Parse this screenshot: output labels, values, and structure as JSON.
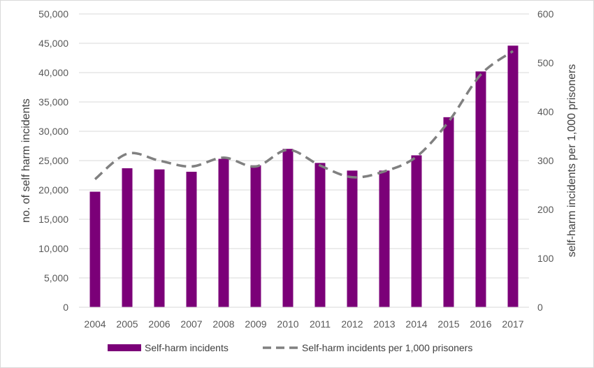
{
  "chart_data": {
    "type": "bar",
    "categories": [
      "2004",
      "2005",
      "2006",
      "2007",
      "2008",
      "2009",
      "2010",
      "2011",
      "2012",
      "2013",
      "2014",
      "2015",
      "2016",
      "2017"
    ],
    "series": [
      {
        "name": "Self-harm incidents",
        "type": "bar",
        "axis": "left",
        "color": "#7b0078",
        "values": [
          19700,
          23700,
          23500,
          23100,
          25300,
          24200,
          27000,
          24600,
          23300,
          23300,
          25900,
          32400,
          40200,
          44600
        ]
      },
      {
        "name": "Self-harm incidents per 1,000 prisoners",
        "type": "line",
        "style": "dashed",
        "axis": "right",
        "color": "#808080",
        "values": [
          262,
          314,
          300,
          288,
          306,
          288,
          322,
          290,
          266,
          278,
          308,
          380,
          476,
          524
        ]
      }
    ],
    "xlabel": "",
    "ylabel": "no. of self harm incidents",
    "y2label": "self-harm incidents per 1,000 prisoners",
    "ylim": [
      0,
      50000
    ],
    "y2lim": [
      0,
      600
    ],
    "yticks": [
      "0",
      "5,000",
      "10,000",
      "15,000",
      "20,000",
      "25,000",
      "30,000",
      "35,000",
      "40,000",
      "45,000",
      "50,000"
    ],
    "y2ticks": [
      "0",
      "100",
      "200",
      "300",
      "400",
      "500",
      "600"
    ],
    "grid": true,
    "legend_position": "bottom"
  }
}
